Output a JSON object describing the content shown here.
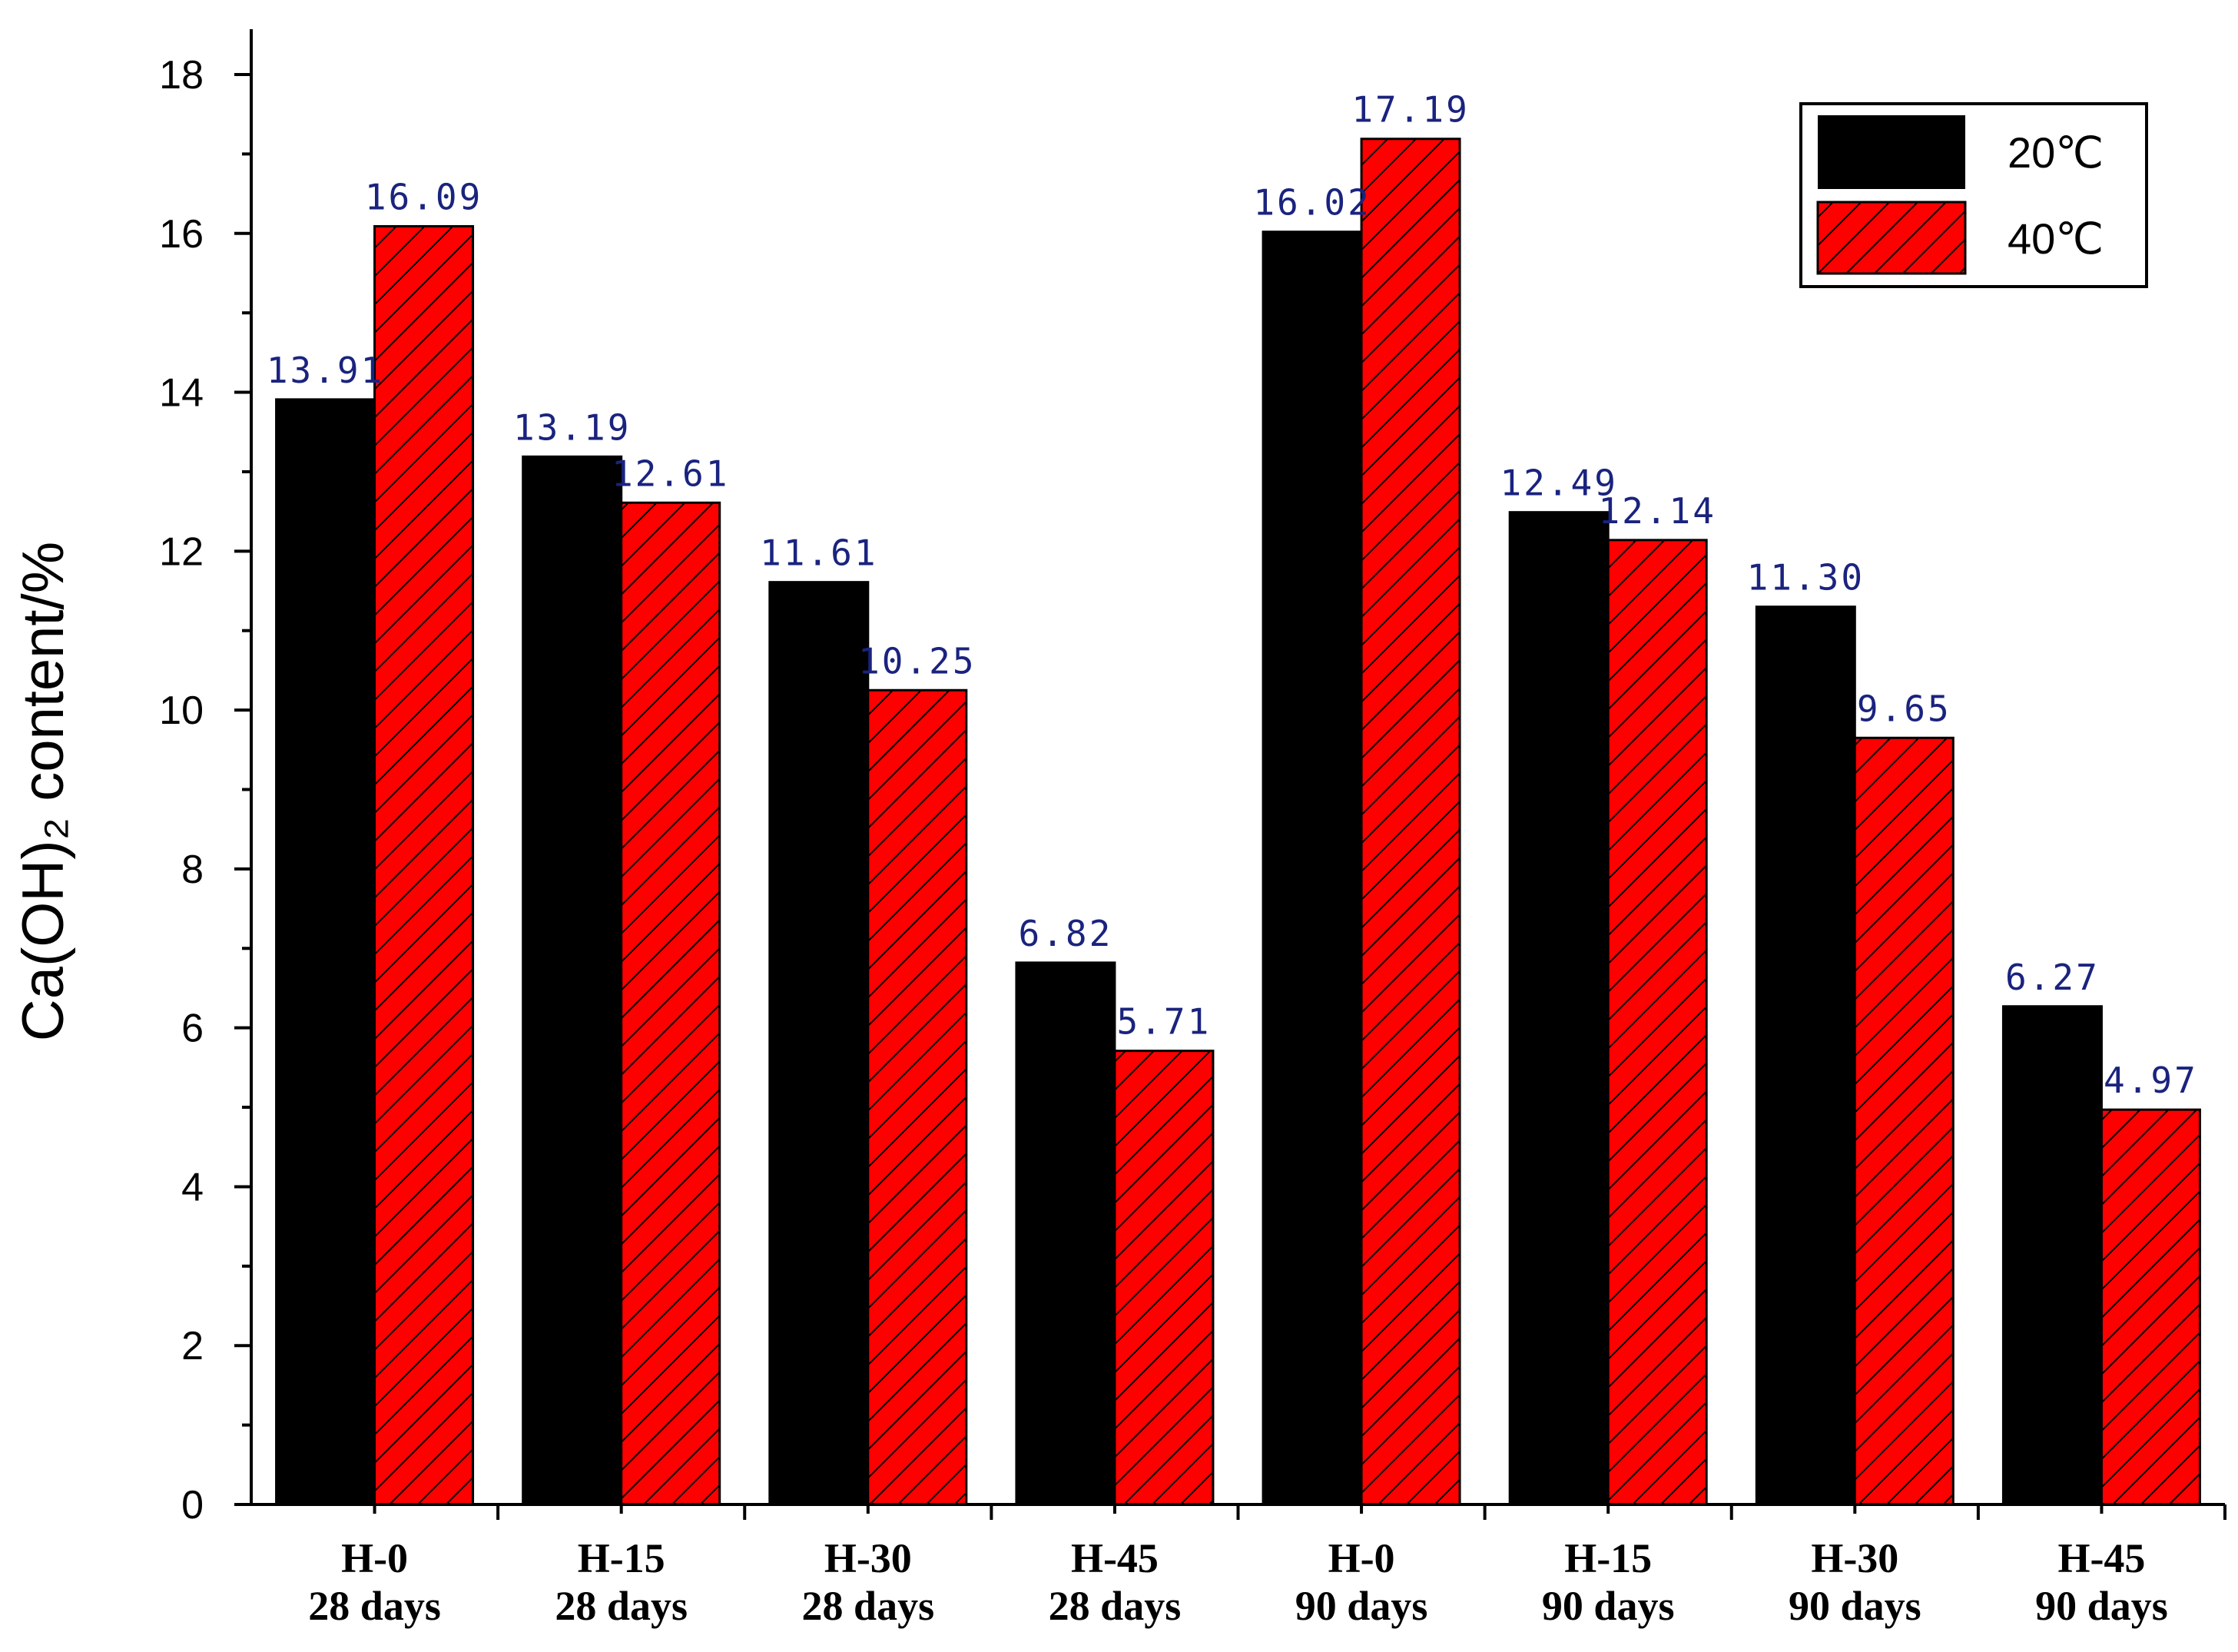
{
  "chart_data": {
    "type": "bar",
    "categories": [
      [
        "H-0",
        "28 days"
      ],
      [
        "H-15",
        "28 days"
      ],
      [
        "H-30",
        "28 days"
      ],
      [
        "H-45",
        "28 days"
      ],
      [
        "H-0",
        "90 days"
      ],
      [
        "H-15",
        "90 days"
      ],
      [
        "H-30",
        "90 days"
      ],
      [
        "H-45",
        "90 days"
      ]
    ],
    "series": [
      {
        "name": "20℃",
        "color": "#000000",
        "pattern": "solid",
        "values": [
          13.91,
          13.19,
          11.61,
          6.82,
          16.02,
          12.49,
          11.3,
          6.27
        ],
        "labels": [
          "13.91",
          "13.19",
          "11.61",
          "6.82",
          "16.02",
          "12.49",
          "11.30",
          "6.27"
        ]
      },
      {
        "name": "40℃",
        "color": "#ff0000",
        "pattern": "diagonal-hatch",
        "values": [
          16.09,
          12.61,
          10.25,
          5.71,
          17.19,
          12.14,
          9.65,
          4.97
        ],
        "labels": [
          "16.09",
          "12.61",
          "10.25",
          "5.71",
          "17.19",
          "12.14",
          "9.65",
          "4.97"
        ]
      }
    ],
    "title": "",
    "xlabel": "",
    "ylabel": "Ca(OH)₂ content/%",
    "ylim": [
      0,
      18
    ],
    "yticks": [
      "0",
      "2",
      "4",
      "6",
      "8",
      "10",
      "12",
      "14",
      "16",
      "18"
    ],
    "grid": false,
    "legend_position": "top-right",
    "label_color": "#1a237e"
  }
}
